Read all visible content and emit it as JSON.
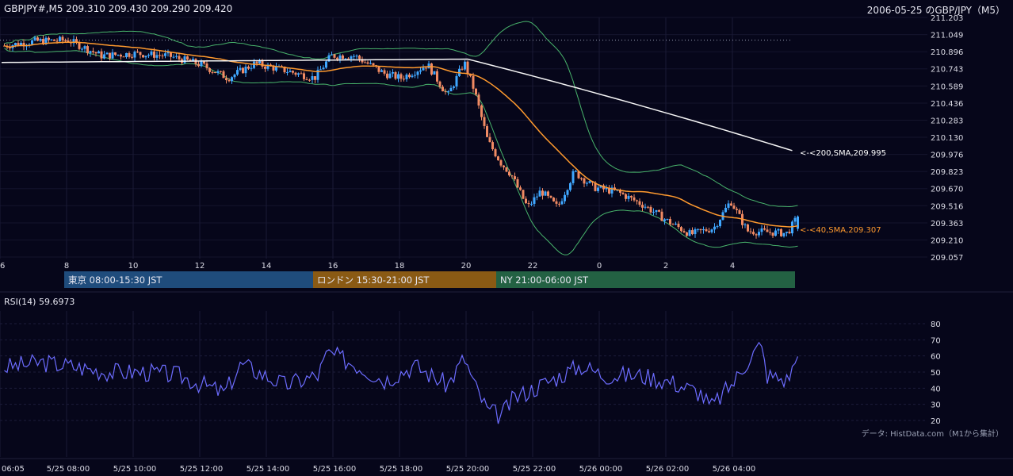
{
  "header": {
    "left": "GBPJPY#,M5 209.310 209.430 209.290 209.420",
    "right": "2006-05-25 のGBP/JPY（M5）"
  },
  "colors": {
    "background": "#06061a",
    "up": "#3fa7ff",
    "down": "#f08a63",
    "sma40": "#ff9a2e",
    "sma200": "#f5f5f5",
    "bands": "#48b36b",
    "rsi": "#6c6cff",
    "tokyo": "#1f4c7c",
    "london": "#8a5a14",
    "ny": "#236143"
  },
  "sessions": [
    {
      "label": "東京 08:00-15:30 JST"
    },
    {
      "label": "ロンドン 15:30-21:00 JST"
    },
    {
      "label": "NY 21:00-06:00 JST"
    }
  ],
  "price_axis": {
    "ticks": [
      "211.203",
      "211.049",
      "210.896",
      "210.743",
      "210.589",
      "210.436",
      "210.283",
      "210.130",
      "209.976",
      "209.823",
      "209.670",
      "209.516",
      "209.363",
      "209.210",
      "209.057"
    ]
  },
  "hour_axis": {
    "ticks": [
      "6",
      "8",
      "10",
      "12",
      "14",
      "16",
      "18",
      "20",
      "22",
      "0",
      "2",
      "4"
    ]
  },
  "annotations": {
    "sma200": "<-<200,SMA,209.995",
    "sma40": "<-<40,SMA,209.307"
  },
  "rsi": {
    "label": "RSI(14) 59.6973",
    "ticks": [
      "80",
      "70",
      "60",
      "50",
      "40",
      "30",
      "20"
    ]
  },
  "time_axis": {
    "ticks": [
      "06:05",
      "5/25 08:00",
      "5/25 10:00",
      "5/25 12:00",
      "5/25 14:00",
      "5/25 16:00",
      "5/25 18:00",
      "5/25 20:00",
      "5/25 22:00",
      "5/26 00:00",
      "5/26 02:00",
      "5/26 04:00"
    ]
  },
  "source": "データ: HistData.com（M1から集計）",
  "chart_data": [
    {
      "type": "candlestick",
      "title": "GBPJPY#,M5 209.310 209.430 209.290 209.420",
      "subtitle": "2006-05-25 のGBP/JPY（M5）",
      "ylim": [
        209.057,
        211.203
      ],
      "x_range": [
        "2006-05-25 06:05",
        "2006-05-26 05:55"
      ],
      "last_bar": {
        "open": 209.31,
        "high": 209.43,
        "low": 209.29,
        "close": 209.42
      },
      "close_anchors": [
        {
          "hour": 6.1,
          "close": 210.95
        },
        {
          "hour": 7.0,
          "close": 210.99
        },
        {
          "hour": 8.0,
          "close": 211.0
        },
        {
          "hour": 9.0,
          "close": 210.86
        },
        {
          "hour": 10.0,
          "close": 210.88
        },
        {
          "hour": 11.0,
          "close": 210.86
        },
        {
          "hour": 12.0,
          "close": 210.78
        },
        {
          "hour": 12.8,
          "close": 210.66
        },
        {
          "hour": 13.6,
          "close": 210.79
        },
        {
          "hour": 14.5,
          "close": 210.73
        },
        {
          "hour": 15.4,
          "close": 210.66
        },
        {
          "hour": 15.9,
          "close": 210.86
        },
        {
          "hour": 16.6,
          "close": 210.86
        },
        {
          "hour": 17.5,
          "close": 210.7
        },
        {
          "hour": 18.0,
          "close": 210.66
        },
        {
          "hour": 18.8,
          "close": 210.78
        },
        {
          "hour": 19.4,
          "close": 210.5
        },
        {
          "hour": 19.9,
          "close": 210.8
        },
        {
          "hour": 20.2,
          "close": 210.55
        },
        {
          "hour": 20.6,
          "close": 210.1
        },
        {
          "hour": 21.0,
          "close": 209.9
        },
        {
          "hour": 21.3,
          "close": 209.8
        },
        {
          "hour": 21.8,
          "close": 209.5
        },
        {
          "hour": 22.2,
          "close": 209.65
        },
        {
          "hour": 22.7,
          "close": 209.5
        },
        {
          "hour": 23.2,
          "close": 209.82
        },
        {
          "hour": 23.8,
          "close": 209.68
        },
        {
          "hour": 24.5,
          "close": 209.64
        },
        {
          "hour": 25.3,
          "close": 209.52
        },
        {
          "hour": 26.0,
          "close": 209.38
        },
        {
          "hour": 26.7,
          "close": 209.26
        },
        {
          "hour": 27.4,
          "close": 209.32
        },
        {
          "hour": 27.9,
          "close": 209.56
        },
        {
          "hour": 28.4,
          "close": 209.29
        },
        {
          "hour": 29.0,
          "close": 209.28
        },
        {
          "hour": 29.6,
          "close": 209.27
        },
        {
          "hour": 29.92,
          "close": 209.42
        }
      ],
      "sma200": {
        "name": "200,SMA",
        "start": 210.8,
        "flat_until_hour": 20.0,
        "last": 209.995
      },
      "sma40": {
        "name": "40,SMA",
        "last": 209.307
      },
      "bollinger": "upper and lower bands around the 40-period SMA"
    },
    {
      "type": "line",
      "title": "RSI(14) 59.6973",
      "ylim": [
        15,
        85
      ],
      "series": [
        {
          "name": "RSI(14)",
          "anchors": [
            {
              "hour": 6.1,
              "value": 53
            },
            {
              "hour": 7.2,
              "value": 56
            },
            {
              "hour": 8.0,
              "value": 54
            },
            {
              "hour": 9.2,
              "value": 50
            },
            {
              "hour": 10.3,
              "value": 50
            },
            {
              "hour": 11.3,
              "value": 48
            },
            {
              "hour": 12.7,
              "value": 37
            },
            {
              "hour": 13.2,
              "value": 55
            },
            {
              "hour": 14.5,
              "value": 42
            },
            {
              "hour": 15.5,
              "value": 48
            },
            {
              "hour": 15.8,
              "value": 62
            },
            {
              "hour": 16.6,
              "value": 55
            },
            {
              "hour": 17.5,
              "value": 45
            },
            {
              "hour": 18.4,
              "value": 54
            },
            {
              "hour": 19.4,
              "value": 42
            },
            {
              "hour": 19.9,
              "value": 59
            },
            {
              "hour": 20.2,
              "value": 42
            },
            {
              "hour": 20.6,
              "value": 26
            },
            {
              "hour": 21.0,
              "value": 23
            },
            {
              "hour": 21.4,
              "value": 34
            },
            {
              "hour": 22.4,
              "value": 44
            },
            {
              "hour": 23.4,
              "value": 54
            },
            {
              "hour": 24.1,
              "value": 48
            },
            {
              "hour": 25.2,
              "value": 48
            },
            {
              "hour": 26.1,
              "value": 44
            },
            {
              "hour": 27.0,
              "value": 37
            },
            {
              "hour": 27.3,
              "value": 28
            },
            {
              "hour": 28.0,
              "value": 44
            },
            {
              "hour": 28.5,
              "value": 60
            },
            {
              "hour": 28.8,
              "value": 67
            },
            {
              "hour": 29.0,
              "value": 48
            },
            {
              "hour": 29.6,
              "value": 45
            },
            {
              "hour": 29.92,
              "value": 59.6973
            }
          ]
        }
      ]
    }
  ]
}
